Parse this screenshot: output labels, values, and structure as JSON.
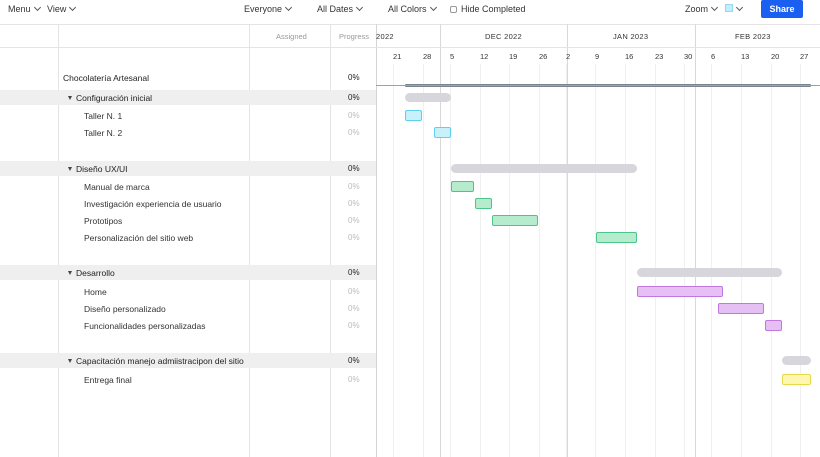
{
  "toolbar": {
    "menu_label": "Menu",
    "view_label": "View",
    "everyone_label": "Everyone",
    "dates_label": "All Dates",
    "colors_label": "All Colors",
    "hide_completed_label": "Hide Completed",
    "zoom_label": "Zoom",
    "swatch_color": "#bfefff",
    "share_label": "Share"
  },
  "columns": {
    "assigned": "Assigned",
    "progress": "Progress"
  },
  "timeline": {
    "months": [
      "2022",
      "DEC 2022",
      "JAN 2023",
      "FEB 2023"
    ],
    "days": [
      "21",
      "28",
      "5",
      "12",
      "19",
      "26",
      "2",
      "9",
      "16",
      "23",
      "30",
      "6",
      "13",
      "20",
      "27"
    ]
  },
  "project": {
    "name": "Chocolatería Artesanal",
    "progress": "0%",
    "groups": [
      {
        "name": "Configuración inicial",
        "progress": "0%",
        "color": "cyan",
        "tasks": [
          {
            "name": "Taller N. 1",
            "progress": "0%"
          },
          {
            "name": "Taller N. 2",
            "progress": "0%"
          }
        ]
      },
      {
        "name": "Diseño UX/UI",
        "progress": "0%",
        "color": "green",
        "tasks": [
          {
            "name": "Manual de marca",
            "progress": "0%"
          },
          {
            "name": "Investigación experiencia de usuario",
            "progress": "0%"
          },
          {
            "name": "Prototipos",
            "progress": "0%"
          },
          {
            "name": "Personalización del sitio web",
            "progress": "0%"
          }
        ]
      },
      {
        "name": "Desarrollo",
        "progress": "0%",
        "color": "purple",
        "tasks": [
          {
            "name": "Home",
            "progress": "0%"
          },
          {
            "name": "Diseño personalizado",
            "progress": "0%"
          },
          {
            "name": "Funcionalidades personalizadas",
            "progress": "0%"
          }
        ]
      },
      {
        "name": "Capacitación manejo admiistracipon del sitio",
        "progress": "0%",
        "color": "yellow",
        "tasks": [
          {
            "name": "Entrega final",
            "progress": "0%"
          }
        ]
      }
    ]
  }
}
